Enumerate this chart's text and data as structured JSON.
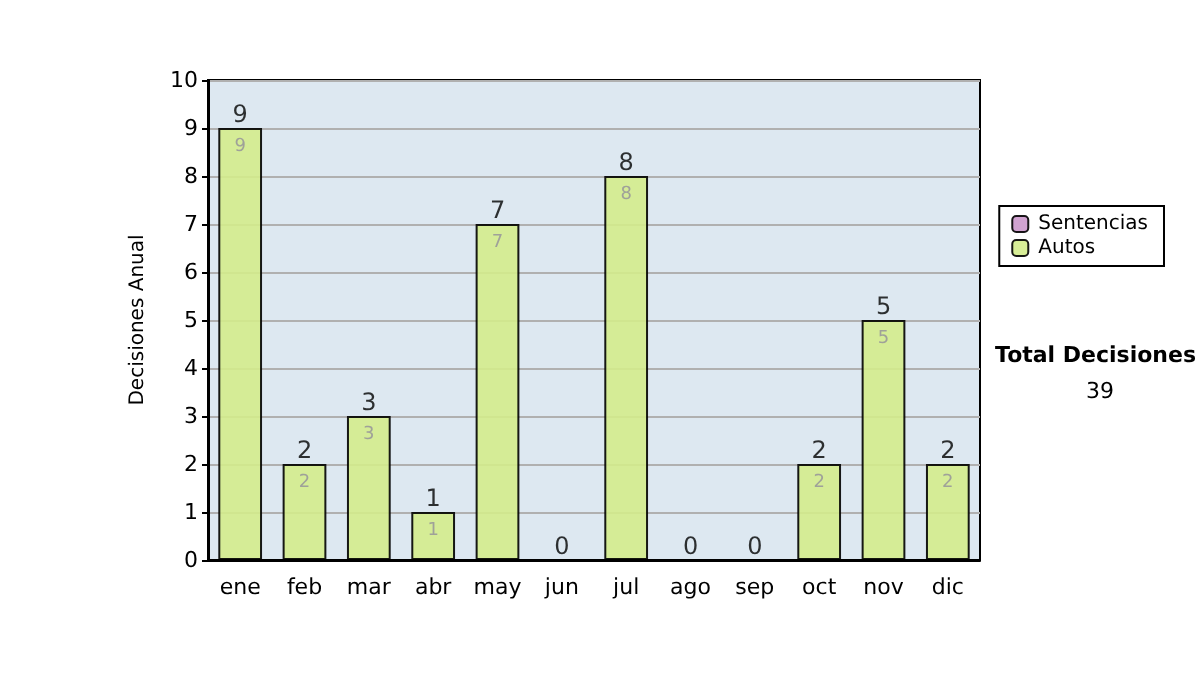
{
  "chart_data": {
    "type": "bar",
    "stacked": true,
    "ylabel": "Decisiones Anual",
    "categories": [
      "ene",
      "feb",
      "mar",
      "abr",
      "may",
      "jun",
      "jul",
      "ago",
      "sep",
      "oct",
      "nov",
      "dic"
    ],
    "series": [
      {
        "name": "Sentencias",
        "color": "#cc99cc",
        "values": [
          0,
          0,
          0,
          0,
          0,
          0,
          0,
          0,
          0,
          0,
          0,
          0
        ]
      },
      {
        "name": "Autos",
        "color": "#d4ec8c",
        "values": [
          9,
          2,
          3,
          1,
          7,
          0,
          8,
          0,
          0,
          2,
          5,
          2
        ],
        "value_labels": [
          "9",
          "2",
          "3",
          "1",
          "7",
          null,
          "8",
          null,
          null,
          "2",
          "5",
          "2"
        ]
      }
    ],
    "totals": [
      "9",
      "2",
      "3",
      "1",
      "7",
      "0",
      "8",
      "0",
      "0",
      "2",
      "5",
      "2"
    ],
    "ylim": [
      0,
      10
    ],
    "yticks": [
      0,
      1,
      2,
      3,
      4,
      5,
      6,
      7,
      8,
      9,
      10
    ],
    "grid": "y",
    "legend": "right",
    "annotations": [
      "Total Decisiones",
      "39"
    ]
  }
}
